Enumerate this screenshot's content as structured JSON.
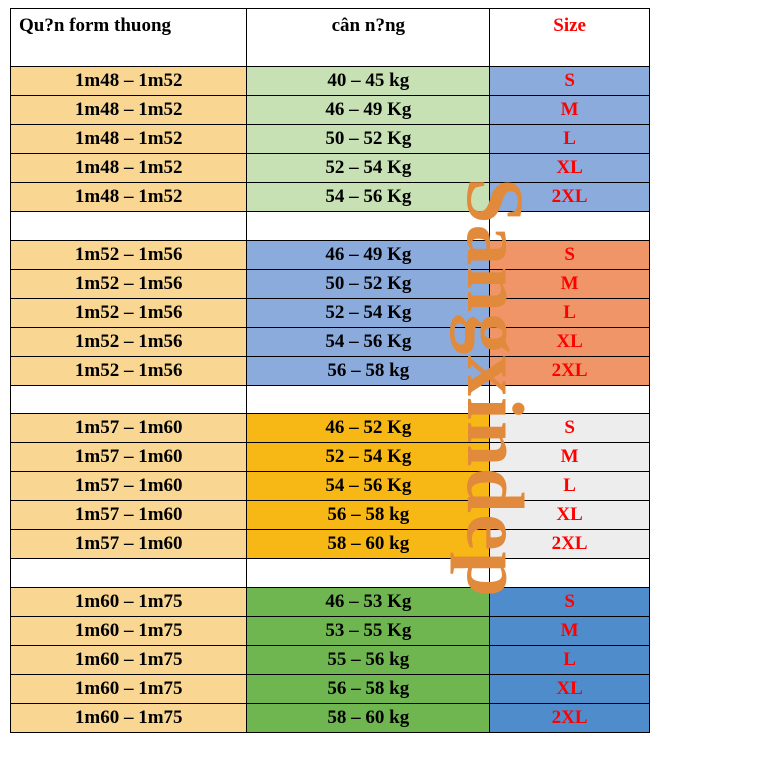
{
  "header": {
    "col1": "Qu?n form thuong",
    "col2": "cân n?ng",
    "col3": "Size",
    "col3_color": "#ff0000"
  },
  "watermark": {
    "text": "Sangxindep",
    "color": "#e18a3b"
  },
  "groups": [
    {
      "height_bg": "#f9d793",
      "weight_bg": "#c7e0b4",
      "size_bg": "#8aabdc",
      "size_color": "#ff0000",
      "rows": [
        {
          "h": "1m48 – 1m52",
          "w": "40 – 45 kg",
          "s": "S"
        },
        {
          "h": "1m48 – 1m52",
          "w": "46 – 49 Kg",
          "s": "M"
        },
        {
          "h": "1m48 – 1m52",
          "w": "50 – 52 Kg",
          "s": "L"
        },
        {
          "h": "1m48 – 1m52",
          "w": "52 – 54 Kg",
          "s": "XL"
        },
        {
          "h": "1m48 – 1m52",
          "w": "54 – 56 Kg",
          "s": "2XL"
        }
      ]
    },
    {
      "height_bg": "#f9d793",
      "weight_bg": "#8aabdc",
      "size_bg": "#ef9568",
      "size_color": "#ff0000",
      "rows": [
        {
          "h": "1m52 – 1m56",
          "w": "46 – 49 Kg",
          "s": "S"
        },
        {
          "h": "1m52 – 1m56",
          "w": "50 – 52 Kg",
          "s": "M"
        },
        {
          "h": "1m52 – 1m56",
          "w": "52 – 54 Kg",
          "s": "L"
        },
        {
          "h": "1m52 – 1m56",
          "w": "54 – 56 Kg",
          "s": "XL"
        },
        {
          "h": "1m52 – 1m56",
          "w": "56 – 58 kg",
          "s": "2XL"
        }
      ]
    },
    {
      "height_bg": "#f9d793",
      "weight_bg": "#f7b714",
      "size_bg": "#ededed",
      "size_color": "#ff0000",
      "rows": [
        {
          "h": "1m57 – 1m60",
          "w": "46 – 52 Kg",
          "s": "S"
        },
        {
          "h": "1m57 – 1m60",
          "w": "52 – 54 Kg",
          "s": "M"
        },
        {
          "h": "1m57 – 1m60",
          "w": "54 – 56 Kg",
          "s": "L"
        },
        {
          "h": "1m57 – 1m60",
          "w": "56 – 58 kg",
          "s": "XL"
        },
        {
          "h": "1m57 – 1m60",
          "w": "58 – 60 kg",
          "s": "2XL"
        }
      ]
    },
    {
      "height_bg": "#f9d793",
      "weight_bg": "#6fb651",
      "size_bg": "#4f8ccb",
      "size_color": "#ff0000",
      "rows": [
        {
          "h": "1m60 – 1m75",
          "w": "46 – 53 Kg",
          "s": "S"
        },
        {
          "h": "1m60 – 1m75",
          "w": "53 – 55 Kg",
          "s": "M"
        },
        {
          "h": "1m60 – 1m75",
          "w": "55 – 56 kg",
          "s": "L"
        },
        {
          "h": "1m60 – 1m75",
          "w": "56 – 58 kg",
          "s": "XL"
        },
        {
          "h": "1m60 – 1m75",
          "w": "58 – 60 kg",
          "s": "2XL"
        }
      ]
    }
  ],
  "col_widths": [
    "37%",
    "38%",
    "25%"
  ]
}
